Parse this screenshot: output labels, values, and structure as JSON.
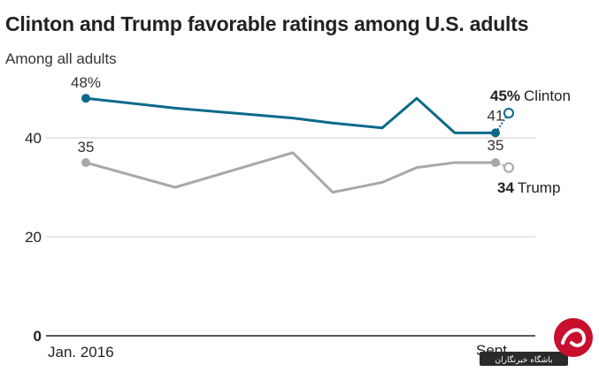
{
  "chart_data": {
    "type": "line",
    "title": "Clinton and Trump favorable ratings among U.S. adults",
    "subtitle": "Among all adults",
    "x_tick_labels": [
      "Jan. 2016",
      "Sept."
    ],
    "y_ticks": [
      0,
      20,
      40
    ],
    "ylim": [
      0,
      50
    ],
    "grid": true,
    "series": [
      {
        "name": "Clinton",
        "color": "#0b6a8a",
        "values": [
          48,
          46,
          44,
          43,
          42,
          48,
          41,
          41
        ],
        "x_index": [
          0,
          1,
          2,
          3,
          4,
          5,
          6,
          7
        ],
        "latest_value": 45,
        "labels": {
          "first": "48%",
          "last_poll": "41",
          "latest": "45%"
        }
      },
      {
        "name": "Trump",
        "color": "#a8a8a8",
        "values": [
          35,
          30,
          37,
          29,
          31,
          34,
          35,
          35
        ],
        "x_index": [
          0,
          1,
          2,
          3,
          4,
          5,
          6,
          7
        ],
        "latest_value": 34,
        "labels": {
          "first": "35",
          "last_poll": "35",
          "latest": "34"
        }
      }
    ]
  },
  "watermark": {
    "text": "باشگاه خبرنگاران"
  }
}
